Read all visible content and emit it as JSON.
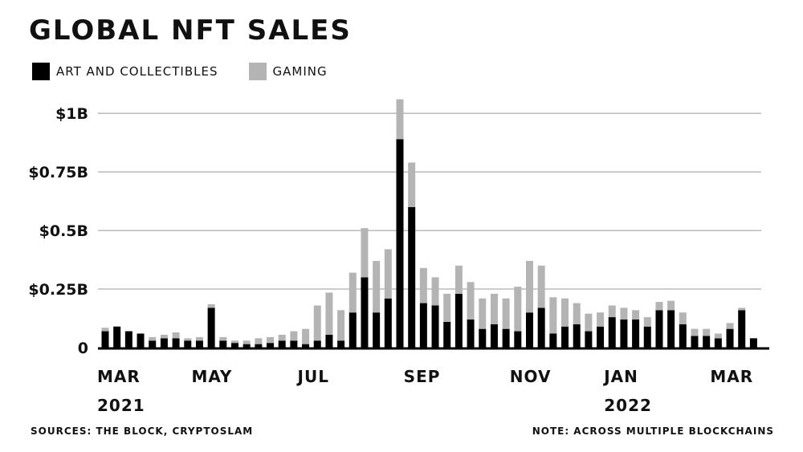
{
  "chart_data": {
    "type": "bar",
    "stacked": true,
    "title": "GLOBAL NFT SALES",
    "xlabel": "",
    "ylabel": "",
    "ylim": [
      0,
      1.1
    ],
    "grid": true,
    "legend_placement": "top-left",
    "y_ticks": [
      {
        "value": 0,
        "label": "0"
      },
      {
        "value": 0.25,
        "label": "$0.25B"
      },
      {
        "value": 0.5,
        "label": "$0.5B"
      },
      {
        "value": 0.75,
        "label": "$0.75B"
      },
      {
        "value": 1,
        "label": "$1B"
      }
    ],
    "x_ticks": [
      {
        "index": 0,
        "label": "MAR"
      },
      {
        "index": 8,
        "label": "MAY"
      },
      {
        "index": 17,
        "label": "JUL"
      },
      {
        "index": 26,
        "label": "SEP"
      },
      {
        "index": 35,
        "label": "NOV"
      },
      {
        "index": 43,
        "label": "JAN"
      },
      {
        "index": 52,
        "label": "MAR"
      }
    ],
    "year_labels": [
      {
        "index": 0,
        "label": "2021"
      },
      {
        "index": 43,
        "label": "2022"
      }
    ],
    "series": [
      {
        "name": "ART AND COLLECTIBLES",
        "color": "#000000",
        "values": [
          0.07,
          0.09,
          0.07,
          0.06,
          0.03,
          0.04,
          0.04,
          0.03,
          0.03,
          0.17,
          0.03,
          0.02,
          0.015,
          0.015,
          0.02,
          0.03,
          0.03,
          0.015,
          0.03,
          0.055,
          0.03,
          0.15,
          0.3,
          0.15,
          0.21,
          0.89,
          0.6,
          0.19,
          0.18,
          0.11,
          0.23,
          0.12,
          0.08,
          0.1,
          0.08,
          0.07,
          0.15,
          0.17,
          0.06,
          0.09,
          0.1,
          0.07,
          0.09,
          0.13,
          0.12,
          0.12,
          0.09,
          0.16,
          0.16,
          0.1,
          0.05,
          0.05,
          0.04,
          0.08,
          0.16,
          0.04
        ]
      },
      {
        "name": "GAMING",
        "color": "#b4b4b4",
        "values": [
          0.015,
          0,
          0,
          0,
          0.015,
          0.015,
          0.025,
          0.01,
          0.015,
          0.015,
          0.015,
          0.01,
          0.015,
          0.025,
          0.025,
          0.025,
          0.04,
          0.065,
          0.15,
          0.18,
          0.13,
          0.17,
          0.21,
          0.22,
          0.21,
          0.17,
          0.19,
          0.15,
          0.12,
          0.12,
          0.12,
          0.16,
          0.13,
          0.13,
          0.13,
          0.19,
          0.22,
          0.18,
          0.155,
          0.12,
          0.09,
          0.075,
          0.06,
          0.05,
          0.05,
          0.04,
          0.04,
          0.035,
          0.04,
          0.05,
          0.03,
          0.03,
          0.02,
          0.025,
          0.01,
          0
        ]
      }
    ]
  },
  "footer": {
    "sources": "SOURCES: THE BLOCK, CRYPTOSLAM",
    "note": "NOTE: ACROSS MULTIPLE BLOCKCHAINS"
  }
}
